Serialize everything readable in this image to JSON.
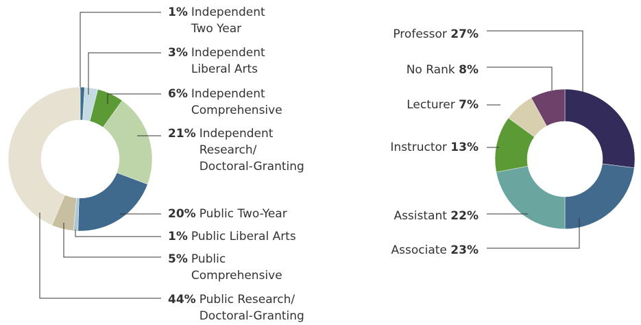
{
  "chart_data": [
    {
      "type": "pie",
      "categories": [
        "Independent\nTwo Year",
        "Independent\nLiberal Arts",
        "Independent\nComprehensive",
        "Independent\nResearch/\nDoctoral-Granting",
        "Public Two-Year",
        "Public Liberal Arts",
        "Public\nComprehensive",
        "Public Research/\nDoctoral-Granting"
      ],
      "values": [
        1,
        3,
        6,
        21,
        20,
        1,
        5,
        44
      ],
      "value_labels": [
        "1%",
        "3%",
        "6%",
        "21%",
        "20%",
        "1%",
        "5%",
        "44%"
      ],
      "colors": [
        "#3f6f8f",
        "#c5dbe3",
        "#5c9a35",
        "#bdd5a8",
        "#3f6a8e",
        "#a9c7d6",
        "#c7bfa0",
        "#e6e1d0"
      ]
    },
    {
      "type": "pie",
      "categories": [
        "Professor",
        "Associate",
        "Assistant",
        "Instructor",
        "Lecturer",
        "No Rank"
      ],
      "values": [
        27,
        23,
        22,
        13,
        7,
        8
      ],
      "value_labels": [
        "27%",
        "23%",
        "22%",
        "13%",
        "7%",
        "8%"
      ],
      "colors": [
        "#332c5a",
        "#426a8c",
        "#6aa5a0",
        "#5c9a35",
        "#d8cfae",
        "#6e416a"
      ]
    }
  ]
}
